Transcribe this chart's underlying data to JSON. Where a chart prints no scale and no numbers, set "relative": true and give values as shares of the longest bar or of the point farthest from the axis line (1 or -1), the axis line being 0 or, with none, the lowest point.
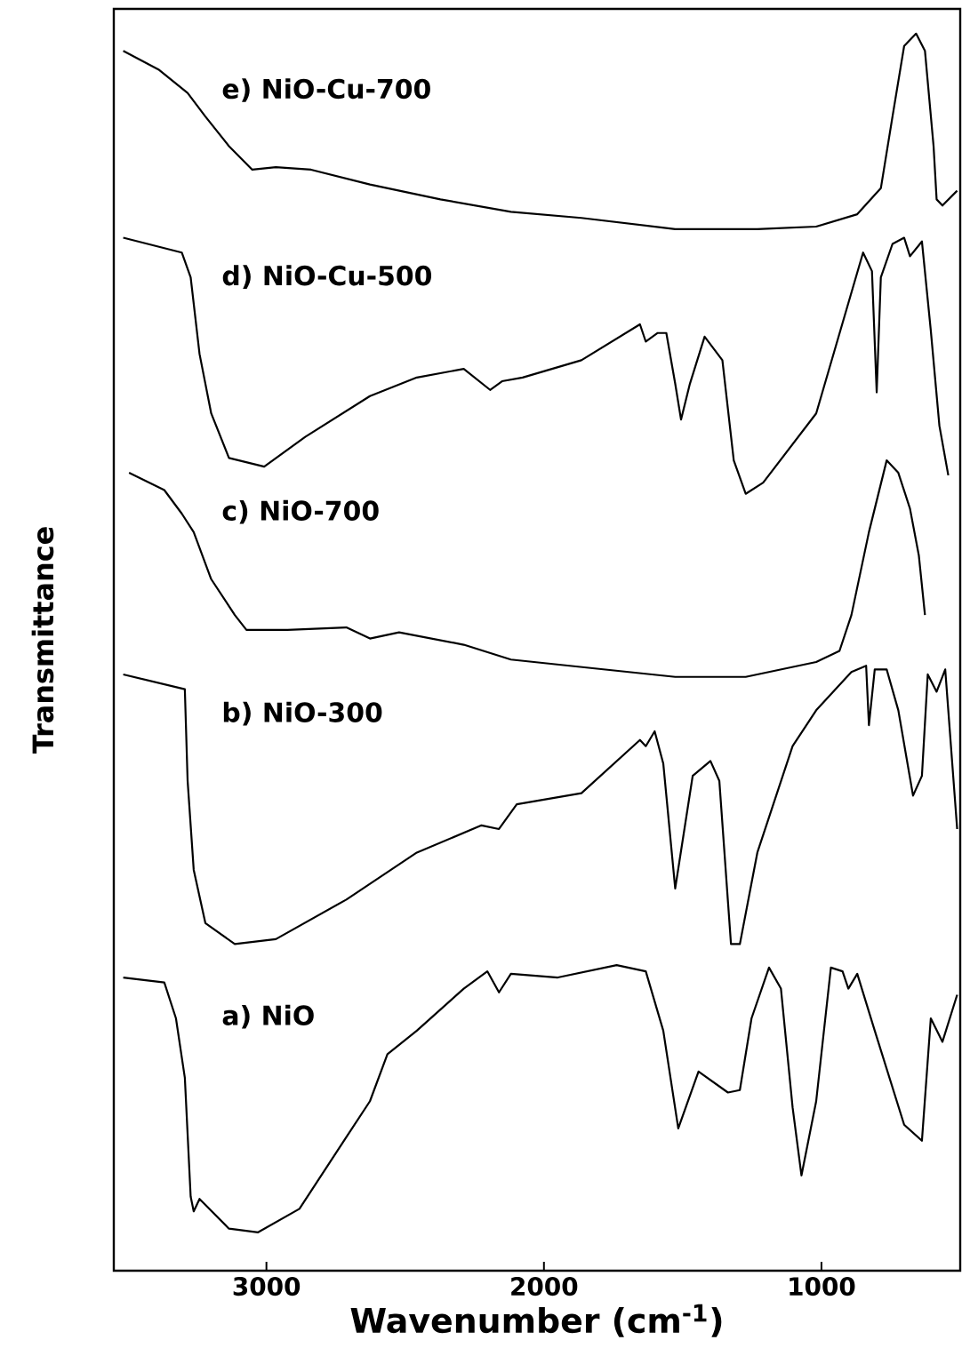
{
  "chart_data": {
    "type": "line",
    "relative": true,
    "xlabel": "Wavenumber (cm$^{-1}$)",
    "ylabel": "Transmittance",
    "xlim": [
      3550,
      500
    ],
    "xticks": [
      3000,
      2000,
      1000
    ],
    "series": [
      {
        "name": "e) NiO-Cu-700",
        "color": "#000000",
        "x": [
          3516,
          3389,
          3284,
          3220,
          3135,
          3051,
          2966,
          2839,
          2627,
          2373,
          2119,
          1865,
          1527,
          1231,
          1019,
          871,
          786,
          744,
          702,
          659,
          627,
          596,
          585,
          564,
          511
        ],
        "values": [
          0.986,
          0.971,
          0.952,
          0.933,
          0.909,
          0.89,
          0.892,
          0.89,
          0.878,
          0.866,
          0.856,
          0.851,
          0.842,
          0.842,
          0.844,
          0.854,
          0.875,
          0.933,
          0.99,
          1.0,
          0.986,
          0.909,
          0.866,
          0.861,
          0.873
        ]
      },
      {
        "name": "d) NiO-Cu-500",
        "color": "#000000",
        "x": [
          3516,
          3305,
          3273,
          3241,
          3199,
          3135,
          3008,
          2860,
          2627,
          2458,
          2289,
          2194,
          2151,
          2077,
          1865,
          1654,
          1633,
          1590,
          1559,
          1527,
          1506,
          1474,
          1421,
          1357,
          1316,
          1273,
          1210,
          1019,
          850,
          818,
          801,
          786,
          744,
          702,
          681,
          638,
          606,
          575,
          543
        ],
        "values": [
          0.835,
          0.823,
          0.803,
          0.741,
          0.693,
          0.657,
          0.65,
          0.674,
          0.707,
          0.722,
          0.729,
          0.712,
          0.719,
          0.722,
          0.736,
          0.765,
          0.751,
          0.758,
          0.758,
          0.717,
          0.688,
          0.717,
          0.755,
          0.736,
          0.655,
          0.628,
          0.637,
          0.693,
          0.823,
          0.808,
          0.71,
          0.803,
          0.83,
          0.835,
          0.82,
          0.832,
          0.76,
          0.683,
          0.643
        ]
      },
      {
        "name": "c) NiO-700",
        "color": "#000000",
        "x": [
          3495,
          3368,
          3305,
          3262,
          3199,
          3114,
          3072,
          2924,
          2712,
          2627,
          2522,
          2289,
          2119,
          1824,
          1527,
          1273,
          1019,
          935,
          892,
          829,
          765,
          723,
          681,
          649,
          627
        ],
        "values": [
          0.645,
          0.631,
          0.612,
          0.597,
          0.559,
          0.53,
          0.518,
          0.518,
          0.52,
          0.511,
          0.516,
          0.506,
          0.494,
          0.487,
          0.48,
          0.48,
          0.492,
          0.501,
          0.53,
          0.597,
          0.655,
          0.645,
          0.616,
          0.578,
          0.53
        ]
      },
      {
        "name": "b) NiO-300",
        "color": "#000000",
        "x": [
          3516,
          3294,
          3284,
          3262,
          3220,
          3114,
          2966,
          2712,
          2458,
          2225,
          2162,
          2098,
          1865,
          1654,
          1633,
          1601,
          1570,
          1527,
          1464,
          1400,
          1368,
          1326,
          1294,
          1231,
          1104,
          1019,
          892,
          839,
          829,
          808,
          765,
          723,
          670,
          638,
          617,
          585,
          554,
          511
        ],
        "values": [
          0.482,
          0.47,
          0.396,
          0.324,
          0.281,
          0.264,
          0.268,
          0.3,
          0.338,
          0.36,
          0.357,
          0.377,
          0.386,
          0.429,
          0.424,
          0.436,
          0.41,
          0.309,
          0.4,
          0.412,
          0.396,
          0.264,
          0.264,
          0.338,
          0.424,
          0.453,
          0.484,
          0.489,
          0.441,
          0.486,
          0.486,
          0.453,
          0.384,
          0.4,
          0.482,
          0.468,
          0.486,
          0.357
        ]
      },
      {
        "name": "a) NiO",
        "color": "#000000",
        "x": [
          3516,
          3368,
          3326,
          3294,
          3273,
          3262,
          3241,
          3135,
          3030,
          2881,
          2712,
          2627,
          2564,
          2458,
          2289,
          2204,
          2162,
          2119,
          1950,
          1738,
          1633,
          1570,
          1516,
          1443,
          1337,
          1294,
          1252,
          1189,
          1146,
          1104,
          1072,
          1019,
          966,
          924,
          903,
          871,
          808,
          702,
          638,
          606,
          564,
          511
        ],
        "values": [
          0.237,
          0.233,
          0.204,
          0.156,
          0.06,
          0.048,
          0.058,
          0.034,
          0.031,
          0.05,
          0.108,
          0.137,
          0.175,
          0.194,
          0.228,
          0.242,
          0.225,
          0.24,
          0.237,
          0.247,
          0.242,
          0.194,
          0.115,
          0.161,
          0.144,
          0.146,
          0.204,
          0.245,
          0.228,
          0.132,
          0.077,
          0.137,
          0.245,
          0.242,
          0.228,
          0.24,
          0.194,
          0.118,
          0.105,
          0.204,
          0.185,
          0.223
        ]
      }
    ]
  }
}
